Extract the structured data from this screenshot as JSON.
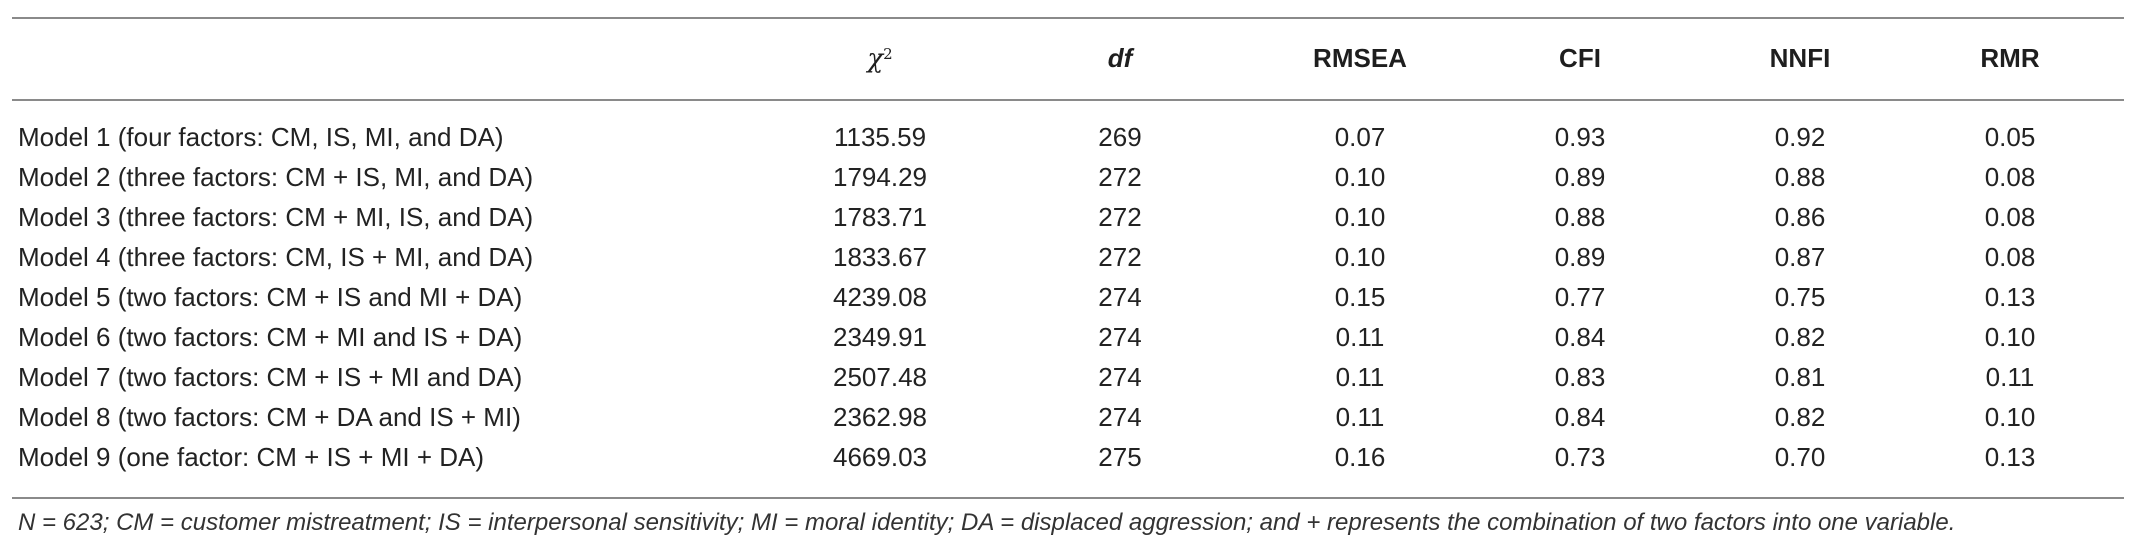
{
  "header": {
    "label": "",
    "chi_symbol": "χ",
    "chi_superscript": "2",
    "df": "df",
    "rmsea": "RMSEA",
    "cfi": "CFI",
    "nnfi": "NNFI",
    "rmr": "RMR"
  },
  "rows": [
    {
      "model": "Model 1 (four factors: CM, IS, MI, and DA)",
      "chi2": "1135.59",
      "df": "269",
      "rmsea": "0.07",
      "cfi": "0.93",
      "nnfi": "0.92",
      "rmr": "0.05"
    },
    {
      "model": "Model 2 (three factors: CM + IS, MI, and DA)",
      "chi2": "1794.29",
      "df": "272",
      "rmsea": "0.10",
      "cfi": "0.89",
      "nnfi": "0.88",
      "rmr": "0.08"
    },
    {
      "model": "Model 3 (three factors: CM + MI, IS, and DA)",
      "chi2": "1783.71",
      "df": "272",
      "rmsea": "0.10",
      "cfi": "0.88",
      "nnfi": "0.86",
      "rmr": "0.08"
    },
    {
      "model": "Model 4 (three factors: CM, IS + MI, and DA)",
      "chi2": "1833.67",
      "df": "272",
      "rmsea": "0.10",
      "cfi": "0.89",
      "nnfi": "0.87",
      "rmr": "0.08"
    },
    {
      "model": "Model 5 (two factors: CM + IS and MI + DA)",
      "chi2": "4239.08",
      "df": "274",
      "rmsea": "0.15",
      "cfi": "0.77",
      "nnfi": "0.75",
      "rmr": "0.13"
    },
    {
      "model": "Model 6 (two factors: CM + MI and IS + DA)",
      "chi2": "2349.91",
      "df": "274",
      "rmsea": "0.11",
      "cfi": "0.84",
      "nnfi": "0.82",
      "rmr": "0.10"
    },
    {
      "model": "Model 7 (two factors: CM + IS + MI and DA)",
      "chi2": "2507.48",
      "df": "274",
      "rmsea": "0.11",
      "cfi": "0.83",
      "nnfi": "0.81",
      "rmr": "0.11"
    },
    {
      "model": "Model 8 (two factors: CM + DA and IS + MI)",
      "chi2": "2362.98",
      "df": "274",
      "rmsea": "0.11",
      "cfi": "0.84",
      "nnfi": "0.82",
      "rmr": "0.10"
    },
    {
      "model": "Model 9 (one factor: CM + IS + MI + DA)",
      "chi2": "4669.03",
      "df": "275",
      "rmsea": "0.16",
      "cfi": "0.73",
      "nnfi": "0.70",
      "rmr": "0.13"
    }
  ],
  "footnote": "N = 623; CM = customer mistreatment; IS = interpersonal sensitivity; MI = moral identity; DA = displaced aggression; and + represents the combination of two factors into one variable."
}
